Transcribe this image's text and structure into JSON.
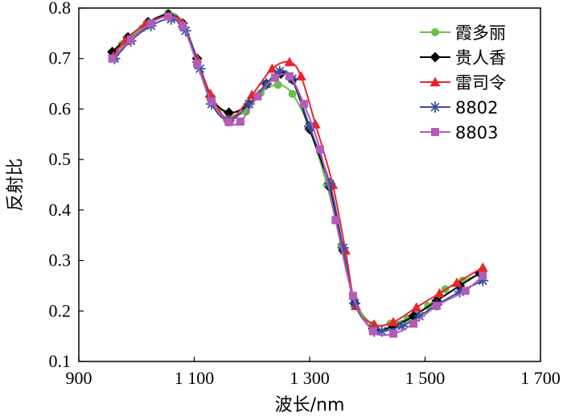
{
  "chart_data": {
    "type": "line",
    "xlabel": "波长/nm",
    "ylabel": "反射比",
    "xlim": [
      900,
      1700
    ],
    "ylim": [
      0.1,
      0.8
    ],
    "x_ticks": [
      900,
      1100,
      1300,
      1500,
      1700
    ],
    "x_tick_labels": [
      "900",
      "1 100",
      "1 300",
      "1 500",
      "1 700"
    ],
    "y_ticks": [
      0.1,
      0.2,
      0.3,
      0.4,
      0.5,
      0.6,
      0.7,
      0.8
    ],
    "y_tick_labels": [
      "0.1",
      "0.2",
      "0.3",
      "0.4",
      "0.5",
      "0.6",
      "0.7",
      "0.8"
    ],
    "grid": false,
    "legend_position": "top-right",
    "series": [
      {
        "name": "霞多丽",
        "color": "#6cbf4a",
        "marker": "circle",
        "x": [
          958,
          975,
          1010,
          1055,
          1080,
          1105,
          1128,
          1160,
          1190,
          1215,
          1245,
          1270,
          1298,
          1330,
          1355,
          1378,
          1410,
          1440,
          1470,
          1505,
          1535,
          1565,
          1600
        ],
        "y": [
          0.712,
          0.728,
          0.76,
          0.79,
          0.77,
          0.69,
          0.62,
          0.59,
          0.595,
          0.632,
          0.648,
          0.63,
          0.566,
          0.45,
          0.33,
          0.222,
          0.173,
          0.175,
          0.185,
          0.21,
          0.243,
          0.26,
          0.275
        ]
      },
      {
        "name": "贵人香",
        "color": "#000000",
        "marker": "diamond",
        "x": [
          958,
          985,
          1020,
          1055,
          1080,
          1105,
          1128,
          1160,
          1195,
          1225,
          1250,
          1270,
          1300,
          1335,
          1358,
          1378,
          1410,
          1445,
          1480,
          1520,
          1560,
          1595
        ],
        "y": [
          0.713,
          0.742,
          0.772,
          0.787,
          0.77,
          0.7,
          0.625,
          0.593,
          0.61,
          0.65,
          0.67,
          0.658,
          0.56,
          0.445,
          0.32,
          0.215,
          0.165,
          0.17,
          0.19,
          0.22,
          0.25,
          0.275
        ]
      },
      {
        "name": "雷司令",
        "color": "#e8262a",
        "marker": "triangle",
        "x": [
          960,
          980,
          1015,
          1055,
          1080,
          1105,
          1128,
          1160,
          1200,
          1235,
          1265,
          1285,
          1310,
          1340,
          1362,
          1380,
          1412,
          1445,
          1485,
          1525,
          1555,
          1600
        ],
        "y": [
          0.705,
          0.735,
          0.768,
          0.784,
          0.77,
          0.7,
          0.63,
          0.58,
          0.628,
          0.68,
          0.693,
          0.665,
          0.57,
          0.45,
          0.32,
          0.21,
          0.173,
          0.178,
          0.207,
          0.235,
          0.256,
          0.286
        ]
      },
      {
        "name": "8802",
        "color": "#3b4fa0",
        "marker": "asterisk",
        "x": [
          962,
          990,
          1025,
          1060,
          1085,
          1110,
          1130,
          1160,
          1195,
          1225,
          1248,
          1270,
          1300,
          1335,
          1358,
          1378,
          1412,
          1425,
          1460,
          1490,
          1520,
          1560,
          1600
        ],
        "y": [
          0.7,
          0.735,
          0.765,
          0.778,
          0.755,
          0.68,
          0.61,
          0.577,
          0.61,
          0.65,
          0.675,
          0.66,
          0.565,
          0.452,
          0.325,
          0.215,
          0.16,
          0.16,
          0.17,
          0.19,
          0.212,
          0.238,
          0.26
        ]
      },
      {
        "name": "8803",
        "color": "#b35cb8",
        "marker": "square",
        "x": [
          958,
          990,
          1025,
          1055,
          1080,
          1105,
          1130,
          1160,
          1180,
          1210,
          1240,
          1265,
          1290,
          1318,
          1345,
          1375,
          1410,
          1445,
          1480,
          1520,
          1570,
          1600
        ],
        "y": [
          0.7,
          0.738,
          0.77,
          0.783,
          0.765,
          0.69,
          0.615,
          0.574,
          0.575,
          0.625,
          0.662,
          0.665,
          0.61,
          0.52,
          0.38,
          0.23,
          0.16,
          0.155,
          0.175,
          0.21,
          0.24,
          0.27
        ]
      }
    ]
  }
}
